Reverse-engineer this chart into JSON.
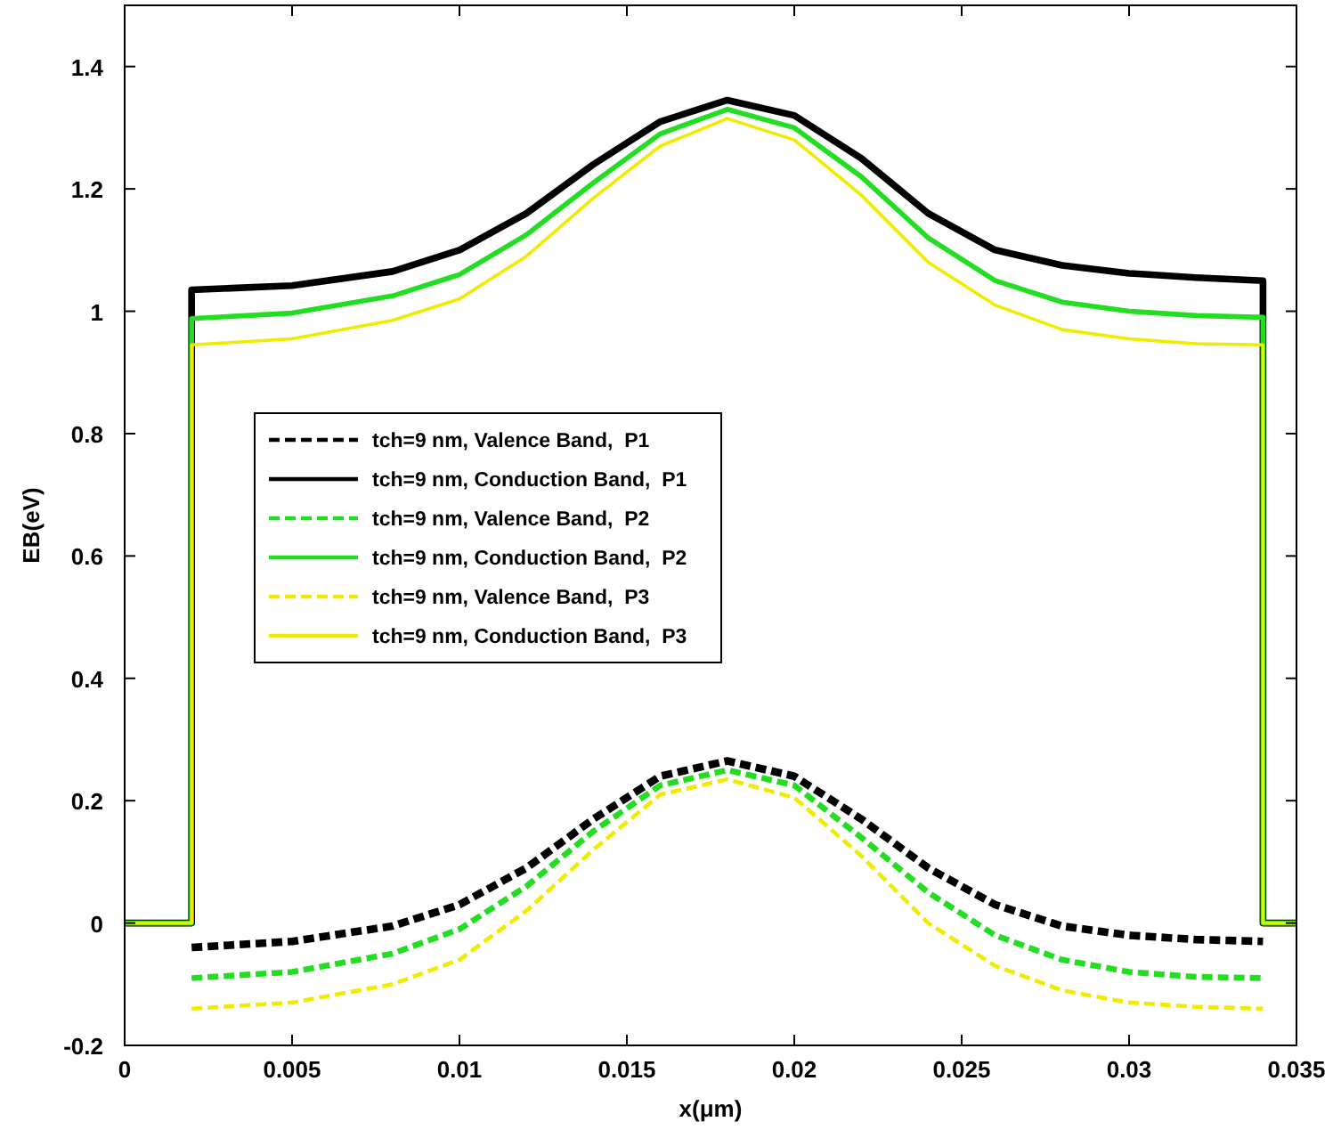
{
  "chart_data": {
    "type": "line",
    "xlabel": "x(μm)",
    "ylabel": "EB(eV)",
    "xlim": [
      0,
      0.035
    ],
    "xticks": [
      0,
      0.005,
      0.01,
      0.015,
      0.02,
      0.025,
      0.03,
      0.035
    ],
    "ylim": [
      -0.2,
      1.5
    ],
    "yticks": [
      -0.2,
      0,
      0.2,
      0.4,
      0.6,
      0.8,
      1,
      1.2,
      1.4
    ],
    "grid": false,
    "legend": "left",
    "marker": "none",
    "series": [
      {
        "name": "tch=9 nm, Valence Band,  P1",
        "color": "#000000",
        "line_style": "dashed",
        "x": [
          0.002,
          0.005,
          0.008,
          0.01,
          0.012,
          0.014,
          0.016,
          0.018,
          0.02,
          0.022,
          0.024,
          0.026,
          0.028,
          0.03,
          0.032,
          0.034
        ],
        "values": [
          -0.04,
          -0.03,
          -0.005,
          0.03,
          0.09,
          0.17,
          0.24,
          0.265,
          0.24,
          0.17,
          0.09,
          0.03,
          -0.005,
          -0.02,
          -0.027,
          -0.03
        ]
      },
      {
        "name": "tch=9 nm, Conduction Band,  P1",
        "color": "#000000",
        "line_style": "solid",
        "x": [
          0,
          0.002,
          0.002,
          0.005,
          0.008,
          0.01,
          0.012,
          0.014,
          0.016,
          0.018,
          0.02,
          0.022,
          0.024,
          0.026,
          0.028,
          0.03,
          0.032,
          0.034,
          0.034,
          0.035
        ],
        "values": [
          0,
          0,
          1.035,
          1.042,
          1.065,
          1.1,
          1.16,
          1.24,
          1.31,
          1.345,
          1.32,
          1.25,
          1.16,
          1.1,
          1.075,
          1.062,
          1.055,
          1.05,
          0,
          0
        ]
      },
      {
        "name": "tch=9 nm, Valence Band,  P2",
        "color": "#22dd22",
        "line_style": "dashed",
        "x": [
          0.002,
          0.005,
          0.008,
          0.01,
          0.012,
          0.014,
          0.016,
          0.018,
          0.02,
          0.022,
          0.024,
          0.026,
          0.028,
          0.03,
          0.032,
          0.034
        ],
        "values": [
          -0.09,
          -0.08,
          -0.05,
          -0.01,
          0.06,
          0.15,
          0.225,
          0.25,
          0.225,
          0.14,
          0.05,
          -0.02,
          -0.06,
          -0.08,
          -0.088,
          -0.09
        ]
      },
      {
        "name": "tch=9 nm, Conduction Band,  P2",
        "color": "#22dd22",
        "line_style": "solid",
        "x": [
          0,
          0.002,
          0.002,
          0.005,
          0.008,
          0.01,
          0.012,
          0.014,
          0.016,
          0.018,
          0.02,
          0.022,
          0.024,
          0.026,
          0.028,
          0.03,
          0.032,
          0.034,
          0.034,
          0.035
        ],
        "values": [
          0,
          0,
          0.988,
          0.997,
          1.025,
          1.06,
          1.125,
          1.21,
          1.29,
          1.33,
          1.3,
          1.22,
          1.12,
          1.05,
          1.015,
          1,
          0.993,
          0.99,
          0,
          0
        ]
      },
      {
        "name": "tch=9 nm, Valence Band,  P3",
        "color": "#f0ec00",
        "line_style": "dashed",
        "x": [
          0.002,
          0.005,
          0.008,
          0.01,
          0.012,
          0.014,
          0.016,
          0.018,
          0.02,
          0.022,
          0.024,
          0.026,
          0.028,
          0.03,
          0.032,
          0.034
        ],
        "values": [
          -0.14,
          -0.13,
          -0.1,
          -0.06,
          0.02,
          0.12,
          0.21,
          0.235,
          0.205,
          0.11,
          0,
          -0.07,
          -0.11,
          -0.13,
          -0.137,
          -0.14
        ]
      },
      {
        "name": "tch=9 nm, Conduction Band,  P3",
        "color": "#f0ec00",
        "line_style": "solid",
        "x": [
          0,
          0.002,
          0.002,
          0.005,
          0.008,
          0.01,
          0.012,
          0.014,
          0.016,
          0.018,
          0.02,
          0.022,
          0.024,
          0.026,
          0.028,
          0.03,
          0.032,
          0.034,
          0.034,
          0.035
        ],
        "values": [
          0,
          0,
          0.945,
          0.955,
          0.985,
          1.02,
          1.09,
          1.185,
          1.27,
          1.315,
          1.28,
          1.19,
          1.08,
          1.01,
          0.97,
          0.955,
          0.947,
          0.945,
          0,
          0
        ]
      }
    ]
  }
}
